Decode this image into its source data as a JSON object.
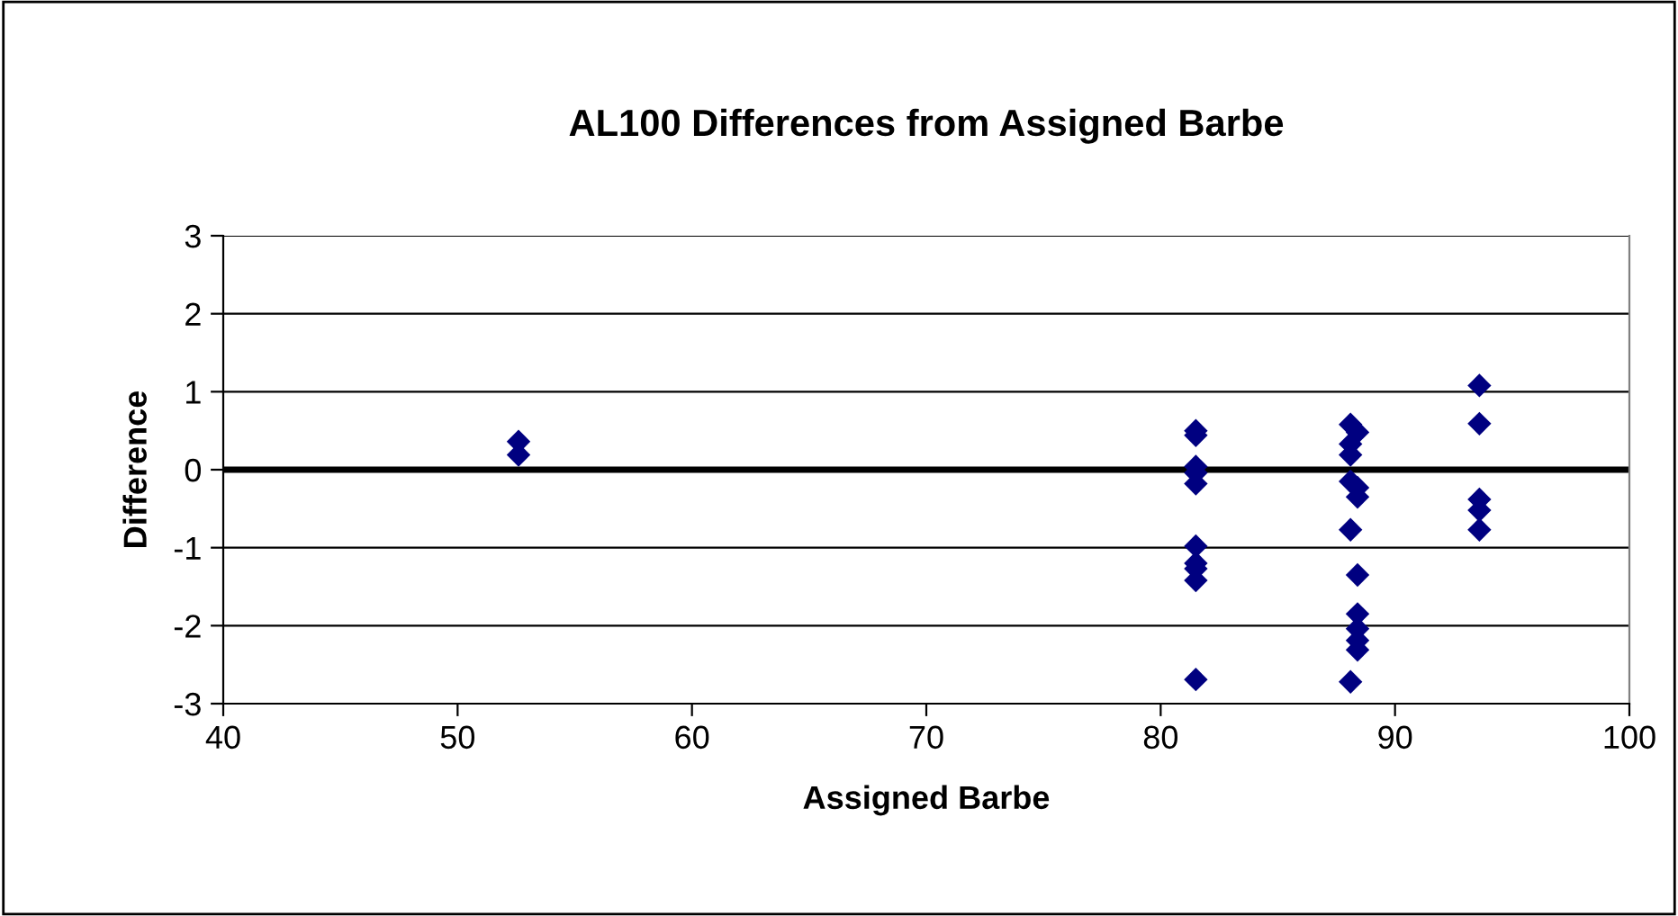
{
  "chart_data": {
    "type": "scatter",
    "title": "AL100 Differences from Assigned Barbe",
    "xlabel": "Assigned Barbe",
    "ylabel": "Difference",
    "series": [
      {
        "color": "#000080",
        "x": [
          52.6,
          52.6,
          81.5,
          81.5,
          81.5,
          81.5,
          81.5,
          81.5,
          81.5,
          81.5,
          81.5,
          81.5,
          88.1,
          88.1,
          88.1,
          88.4,
          88.1,
          88.4,
          88.4,
          88.1,
          88.4,
          88.4,
          88.4,
          88.4,
          88.4,
          88.1,
          93.6,
          93.6,
          93.6,
          93.6,
          93.6
        ],
        "values": [
          0.36,
          0.19,
          0.5,
          0.44,
          0.04,
          -0.04,
          -0.18,
          -0.98,
          -1.2,
          -1.27,
          -1.42,
          -2.69,
          0.58,
          0.33,
          0.19,
          0.48,
          -0.15,
          -0.23,
          -0.35,
          -0.77,
          -1.35,
          -1.85,
          -2.04,
          -2.19,
          -2.31,
          -2.72,
          1.08,
          0.59,
          -0.38,
          -0.52,
          -0.77
        ]
      }
    ],
    "xlim": [
      40,
      100
    ],
    "xticks": [
      40,
      50,
      60,
      70,
      80,
      90,
      100
    ],
    "ylim": [
      -3,
      3
    ],
    "yticks": [
      -3,
      -2,
      -1,
      0,
      1,
      2,
      3
    ],
    "ref_lines": [
      {
        "axis": "y",
        "value": 0,
        "color": "#000000"
      }
    ],
    "grid": "y",
    "marker": "diamond",
    "legend": false
  }
}
